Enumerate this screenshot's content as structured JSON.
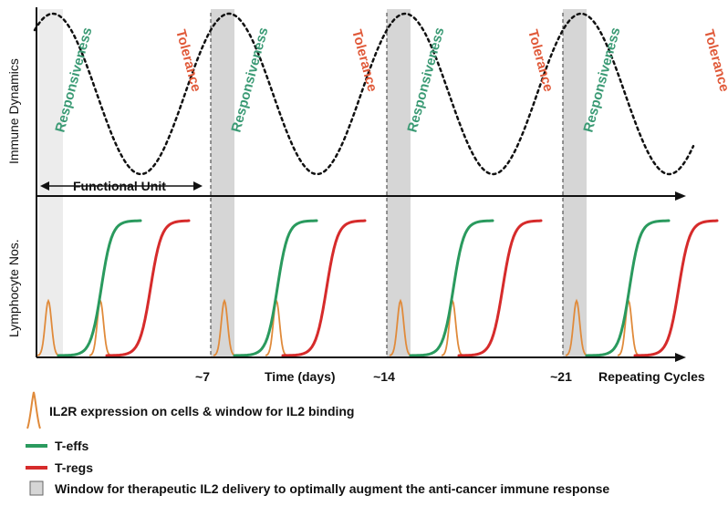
{
  "colors": {
    "teff": "#2a9a5e",
    "treg": "#d62b2b",
    "il2r": "#e08a3a",
    "window_fill": "#d6d6d6",
    "window_first": "#ececec",
    "responsiveness": "#3a9a74",
    "tolerance": "#e05a3a"
  },
  "top_panel": {
    "ylabel": "Immune Dynamics",
    "phase_responsiveness": "Responsiveness",
    "phase_tolerance": "Tolerance",
    "functional_unit_label": "Functional Unit"
  },
  "bottom_panel": {
    "ylabel": "Lymphocyte Nos."
  },
  "x_axis": {
    "ticks": [
      "~7",
      "~14",
      "~21"
    ],
    "tick_days": [
      7,
      14,
      21
    ],
    "time_label": "Time (days)",
    "repeat_label": "Repeating Cycles"
  },
  "cycles": 4,
  "legend": {
    "il2r": "IL2R expression on cells & window for IL2 binding",
    "teff": "T-effs",
    "treg": "T-regs",
    "window": "Window for therapeutic IL2 delivery to optimally augment the anti-cancer immune response"
  }
}
